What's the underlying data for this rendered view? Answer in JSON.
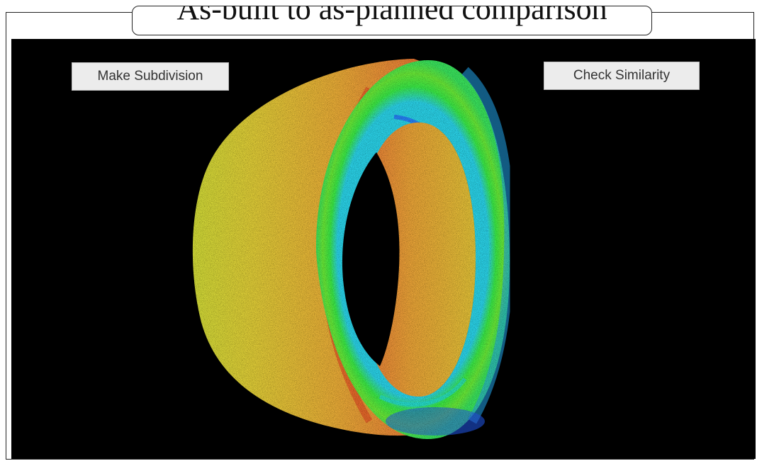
{
  "title": "As-built to as-planned comparison",
  "viewport": {
    "background": "#000000",
    "model": "tunnel-ring-point-cloud",
    "colormap": [
      "#2b6bff",
      "#25e0f0",
      "#35f03a",
      "#c8e83a",
      "#f0c23a",
      "#f0803a",
      "#e8562a"
    ]
  },
  "buttons": {
    "subdivision_label": "Make Subdivision",
    "similarity_label": "Check Similarity"
  }
}
